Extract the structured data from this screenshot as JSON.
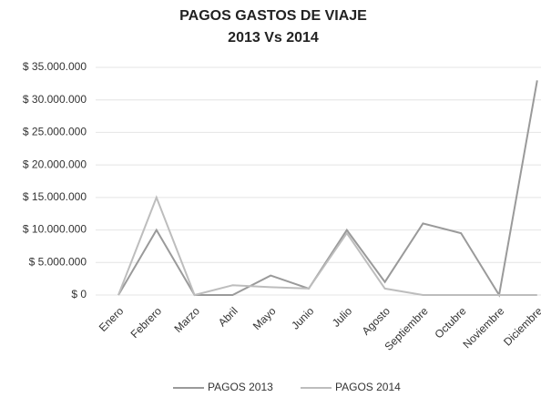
{
  "chart_data": {
    "type": "line",
    "title": "PAGOS GASTOS DE VIAJE",
    "subtitle": "2013 Vs 2014",
    "categories": [
      "Enero",
      "Febrero",
      "Marzo",
      "Abril",
      "Mayo",
      "Junio",
      "Julio",
      "Agosto",
      "Septiembre",
      "Octubre",
      "Noviembre",
      "Diciembre"
    ],
    "series": [
      {
        "name": "PAGOS 2013",
        "color": "#9a9a9a",
        "values": [
          0,
          10000000,
          0,
          0,
          3000000,
          1000000,
          10000000,
          2000000,
          11000000,
          9500000,
          0,
          33000000
        ]
      },
      {
        "name": "PAGOS 2014",
        "color": "#bdbdbd",
        "values": [
          0,
          15000000,
          0,
          1500000,
          1200000,
          1000000,
          9500000,
          1000000,
          0,
          0,
          0,
          0
        ]
      }
    ],
    "ylim": [
      0,
      35000000
    ],
    "yticks": [
      {
        "value": 0,
        "label": "$ 0"
      },
      {
        "value": 5000000,
        "label": "$ 5.000.000"
      },
      {
        "value": 10000000,
        "label": "$ 10.000.000"
      },
      {
        "value": 15000000,
        "label": "$ 15.000.000"
      },
      {
        "value": 20000000,
        "label": "$ 20.000.000"
      },
      {
        "value": 25000000,
        "label": "$ 25.000.000"
      },
      {
        "value": 30000000,
        "label": "$ 30.000.000"
      },
      {
        "value": 35000000,
        "label": "$ 35.000.000"
      }
    ],
    "grid": true
  }
}
